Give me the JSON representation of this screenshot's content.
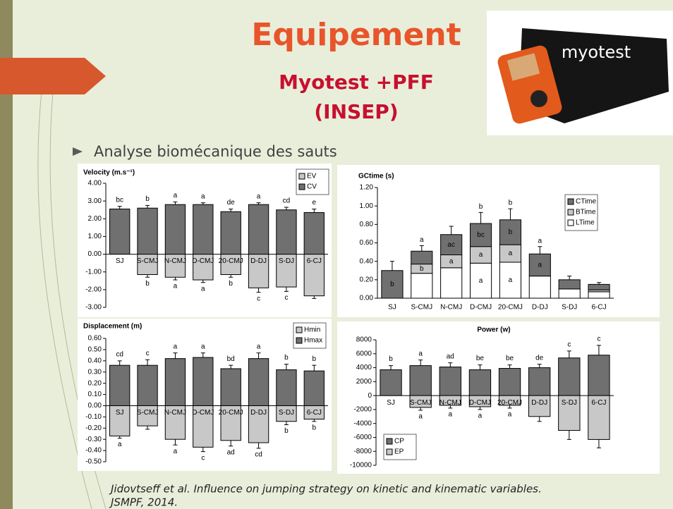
{
  "title": "Equipement",
  "subtitle_lines": [
    "Myotest +PFF",
    "(INSEP)"
  ],
  "image_text": "myotest",
  "bullet": "Analyse biomécanique des sauts",
  "citation_lines": [
    "Jidovtseff et al. Influence on jumping strategy on kinetic and kinematic variables.",
    "JSMPF, 2014."
  ],
  "chart_data": [
    {
      "type": "bar",
      "title": "Velocity (m.s⁻¹)",
      "categories": [
        "SJ",
        "S-CMJ",
        "N-CMJ",
        "D-CMJ",
        "20-CMJ",
        "D-DJ",
        "S-DJ",
        "6-CJ"
      ],
      "series": [
        {
          "name": "EV",
          "color": "#c8c8c8",
          "values": [
            null,
            -1.15,
            -1.3,
            -1.45,
            -1.15,
            -1.9,
            -1.85,
            -2.35
          ],
          "errors": [
            null,
            0.15,
            0.15,
            0.15,
            0.15,
            0.25,
            0.25,
            0.15
          ],
          "letters": [
            null,
            "b",
            "a",
            "a",
            "b",
            "c",
            "c",
            null
          ]
        },
        {
          "name": "CV",
          "color": "#707070",
          "values": [
            2.55,
            2.6,
            2.8,
            2.8,
            2.4,
            2.8,
            2.5,
            2.35
          ],
          "errors": [
            0.15,
            0.15,
            0.15,
            0.1,
            0.15,
            0.1,
            0.15,
            0.2
          ],
          "letters": [
            "bc",
            "b",
            "a",
            "a",
            "de",
            "a",
            "cd",
            "e"
          ]
        }
      ],
      "ylim": [
        -3,
        4
      ],
      "yticks": [
        {
          "value": 4,
          "label": "4.00"
        },
        {
          "value": 3,
          "label": "3.00"
        },
        {
          "value": 2,
          "label": "2.00"
        },
        {
          "value": 1,
          "label": "1.00"
        },
        {
          "value": 0,
          "label": "0.00"
        },
        {
          "value": -1,
          "label": "-1.00"
        },
        {
          "value": -2,
          "label": "-2.00"
        },
        {
          "value": -3,
          "label": "-3.00"
        }
      ],
      "legend": "top-right"
    },
    {
      "type": "stacked_bar",
      "title": "GCtime (s)",
      "categories": [
        "SJ",
        "S-CMJ",
        "N-CMJ",
        "D-CMJ",
        "20-CMJ",
        "D-DJ",
        "S-DJ",
        "6-CJ"
      ],
      "series": [
        {
          "name": "CTime",
          "color": "#707070",
          "values": [
            0.3,
            0.14,
            0.22,
            0.25,
            0.27,
            0.24,
            0.1,
            0.06
          ],
          "errors": [
            0.1,
            0.06,
            0.09,
            0.12,
            0.12,
            0.08,
            0.04,
            0.02
          ],
          "letters": [
            "b",
            null,
            "ac",
            "bc",
            "b",
            "a",
            null,
            null
          ]
        },
        {
          "name": "BTime",
          "color": "#c8c8c8",
          "values": [
            null,
            0.1,
            0.14,
            0.18,
            0.19,
            null,
            null,
            0.02
          ],
          "letters": [
            null,
            "b",
            "a",
            "a",
            "a",
            null,
            null,
            null
          ]
        },
        {
          "name": "LTime",
          "color": "#ffffff",
          "values": [
            null,
            0.27,
            0.33,
            0.38,
            0.39,
            0.24,
            0.1,
            0.07
          ],
          "letters": [
            null,
            null,
            null,
            "a",
            "a",
            null,
            null,
            null
          ]
        }
      ],
      "top_letters": [
        null,
        "a",
        null,
        "b",
        "b",
        "a",
        null,
        null
      ],
      "ylim": [
        0,
        1.2
      ],
      "yticks": [
        {
          "value": 1.2,
          "label": "1.20"
        },
        {
          "value": 1,
          "label": "1.00"
        },
        {
          "value": 0.8,
          "label": "0.80"
        },
        {
          "value": 0.6,
          "label": "0.60"
        },
        {
          "value": 0.4,
          "label": "0.40"
        },
        {
          "value": 0.2,
          "label": "0.20"
        },
        {
          "value": 0,
          "label": "0.00"
        }
      ],
      "legend": "right"
    },
    {
      "type": "bar",
      "title": "Displacement (m)",
      "categories": [
        "SJ",
        "S-CMJ",
        "N-CMJ",
        "D-CMJ",
        "20-CMJ",
        "D-DJ",
        "S-DJ",
        "6-CJ"
      ],
      "series": [
        {
          "name": "Hmin",
          "color": "#c8c8c8",
          "values": [
            -0.27,
            -0.18,
            -0.3,
            -0.37,
            -0.31,
            -0.33,
            -0.14,
            -0.12
          ],
          "errors": [
            0.02,
            0.03,
            0.05,
            0.04,
            0.05,
            0.05,
            0.03,
            0.02
          ],
          "letters": [
            "a",
            null,
            "a",
            "c",
            "ad",
            "cd",
            "b",
            "b"
          ]
        },
        {
          "name": "Hmax",
          "color": "#707070",
          "values": [
            0.36,
            0.36,
            0.42,
            0.43,
            0.33,
            0.42,
            0.32,
            0.31
          ],
          "errors": [
            0.04,
            0.05,
            0.05,
            0.04,
            0.03,
            0.05,
            0.05,
            0.05
          ],
          "letters": [
            "cd",
            "c",
            "a",
            "a",
            "bd",
            "a",
            "b",
            "b"
          ]
        }
      ],
      "ylim": [
        -0.5,
        0.6
      ],
      "yticks": [
        {
          "value": 0.6,
          "label": "0.60"
        },
        {
          "value": 0.5,
          "label": "0.50"
        },
        {
          "value": 0.4,
          "label": "0.40"
        },
        {
          "value": 0.3,
          "label": "0.30"
        },
        {
          "value": 0.2,
          "label": "0.20"
        },
        {
          "value": 0.1,
          "label": "0.10"
        },
        {
          "value": 0,
          "label": "0.00"
        },
        {
          "value": -0.1,
          "label": "-0.10"
        },
        {
          "value": -0.2,
          "label": "-0.20"
        },
        {
          "value": -0.3,
          "label": "-0.30"
        },
        {
          "value": -0.4,
          "label": "-0.40"
        },
        {
          "value": -0.5,
          "label": "-0.50"
        }
      ],
      "legend": "top-right"
    },
    {
      "type": "bar",
      "title": "Power (w)",
      "categories": [
        "SJ",
        "S-CMJ",
        "N-CMJ",
        "D-CMJ",
        "20-CMJ",
        "D-DJ",
        "S-DJ",
        "6-CJ"
      ],
      "series": [
        {
          "name": "CP",
          "color": "#707070",
          "values": [
            3700,
            4300,
            4100,
            3700,
            3900,
            4000,
            5400,
            5800
          ],
          "errors": [
            600,
            800,
            600,
            700,
            500,
            500,
            1000,
            1400
          ],
          "letters": [
            "b",
            "a",
            "ad",
            "be",
            "be",
            "de",
            "c",
            "c"
          ]
        },
        {
          "name": "EP",
          "color": "#c8c8c8",
          "values": [
            null,
            -1700,
            -1400,
            -1600,
            -1400,
            -3000,
            -5000,
            -6300
          ],
          "errors": [
            null,
            400,
            400,
            400,
            400,
            700,
            1300,
            1200
          ],
          "letters": [
            null,
            "a",
            "a",
            "a",
            "a",
            null,
            null,
            null
          ]
        }
      ],
      "ylim": [
        -10000,
        8000
      ],
      "yticks": [
        8000,
        6000,
        4000,
        2000,
        0,
        -2000,
        -4000,
        -6000,
        -8000,
        -10000
      ],
      "legend": "bottom-left"
    }
  ]
}
